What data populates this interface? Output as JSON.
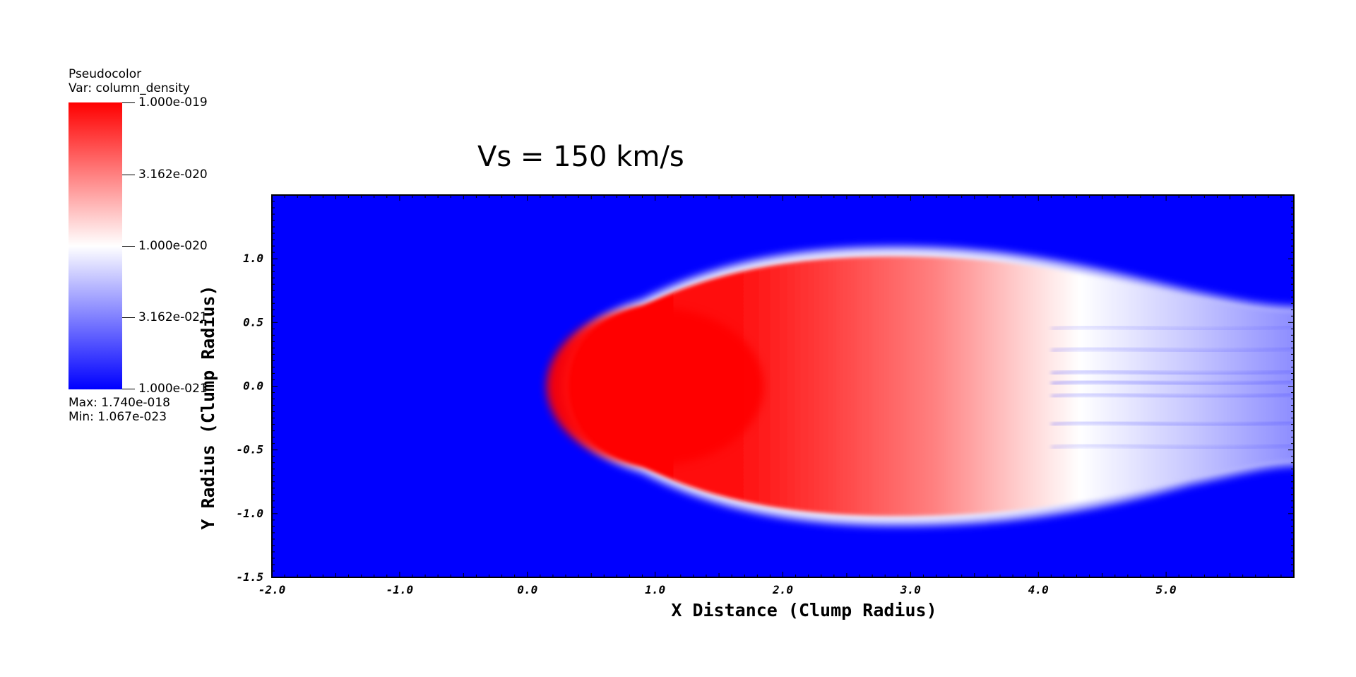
{
  "legend": {
    "plot_type": "Pseudocolor",
    "variable": "Var: column_density",
    "ticks": [
      "1.000e-019",
      "3.162e-020",
      "1.000e-020",
      "3.162e-021",
      "1.000e-021"
    ],
    "max": "Max:  1.740e-018",
    "min": "Min:  1.067e-023",
    "colors": {
      "high": "#ff0000",
      "mid": "#ffffff",
      "low": "#0000ff"
    }
  },
  "title": "Vs = 150 km/s",
  "chart_data": {
    "type": "heatmap",
    "title": "Vs = 150 km/s",
    "xlabel": "X Distance (Clump Radius)",
    "ylabel": "Y Radius (Clump Radius)",
    "xlim": [
      -2.0,
      6.0
    ],
    "ylim": [
      -1.5,
      1.5
    ],
    "x_ticks": [
      "-2.0",
      "-1.0",
      "0.0",
      "1.0",
      "2.0",
      "3.0",
      "4.0",
      "5.0"
    ],
    "x_tick_values": [
      -2,
      -1,
      0,
      1,
      2,
      3,
      4,
      5
    ],
    "y_ticks": [
      "-1.5",
      "-1.0",
      "-0.5",
      "0.0",
      "0.5",
      "1.0"
    ],
    "y_tick_values": [
      -1.5,
      -1.0,
      -0.5,
      0.0,
      0.5,
      1.0
    ],
    "colormap": {
      "low": "#0000ff",
      "mid": "#ffffff",
      "high": "#ff0000",
      "scale": "log",
      "range": [
        1e-21,
        1e-19
      ]
    },
    "structure": {
      "front_x": 0.3,
      "peak_x": 1.5,
      "half_width_max": 1.05,
      "tail_end_x": 6.0,
      "tail_half_width": 0.6
    }
  }
}
